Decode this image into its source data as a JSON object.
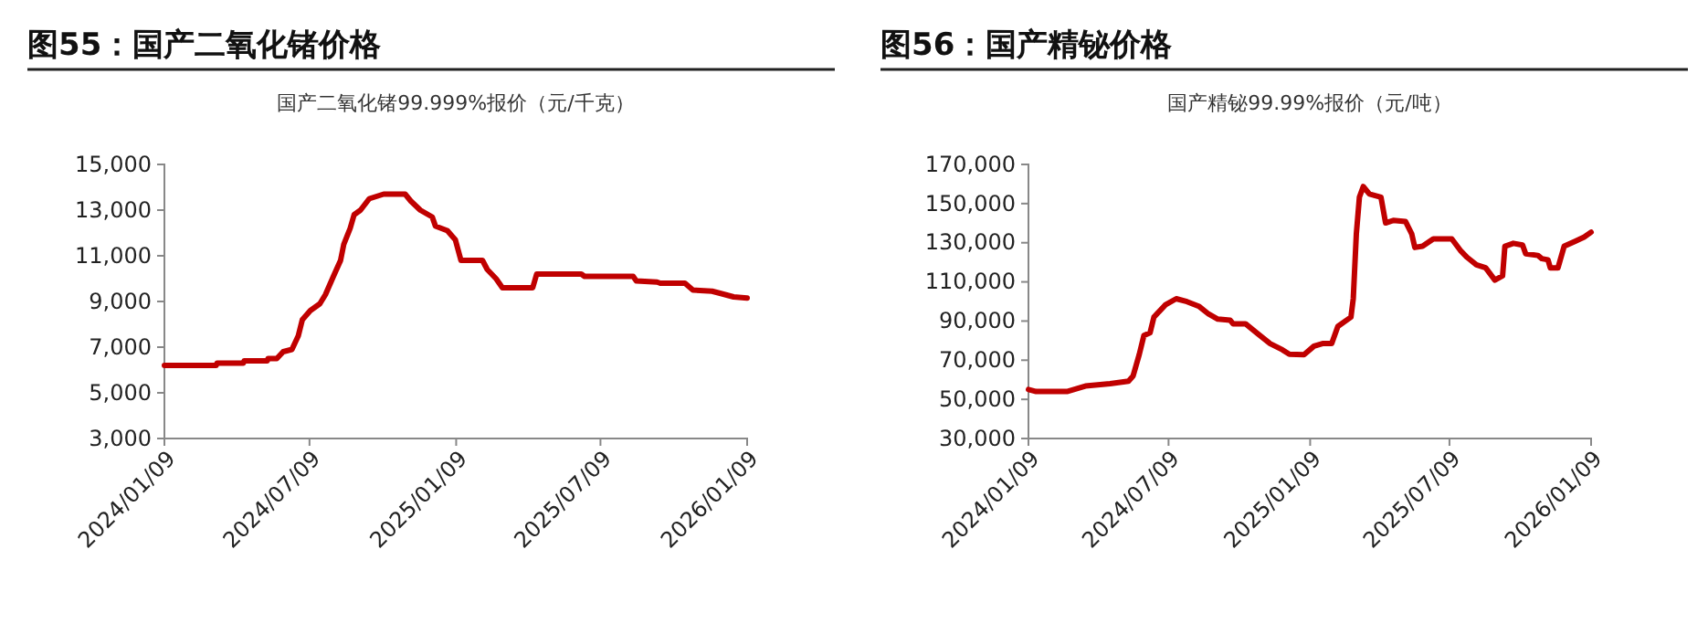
{
  "chart_data": [
    {
      "type": "line",
      "title": "图55：国产二氧化锗价格",
      "subtitle": "国产二氧化锗99.999%报价（元/千克）",
      "x": [
        "2024-01-09",
        "2024-03-14",
        "2024-03-15",
        "2024-04-17",
        "2024-04-18",
        "2024-05-17",
        "2024-05-18",
        "2024-05-29",
        "2024-06-06",
        "2024-06-17",
        "2024-06-25",
        "2024-06-30",
        "2024-07-10",
        "2024-07-22",
        "2024-07-29",
        "2024-08-08",
        "2024-08-17",
        "2024-08-21",
        "2024-08-29",
        "2024-09-03",
        "2024-09-11",
        "2024-09-22",
        "2024-10-10",
        "2024-11-06",
        "2024-11-13",
        "2024-11-25",
        "2024-12-10",
        "2024-12-14",
        "2024-12-29",
        "2025-01-08",
        "2025-01-15",
        "2025-02-11",
        "2025-02-17",
        "2025-02-28",
        "2025-03-08",
        "2025-04-15",
        "2025-04-20",
        "2025-06-15",
        "2025-06-19",
        "2025-08-19",
        "2025-08-23",
        "2025-09-18",
        "2025-09-22",
        "2025-10-23",
        "2025-11-02",
        "2025-11-26",
        "2025-12-07",
        "2025-12-23",
        "2026-01-09"
      ],
      "series": [
        {
          "color": "#c00000",
          "values": [
            6200,
            6200,
            6300,
            6300,
            6400,
            6400,
            6500,
            6500,
            6800,
            6900,
            7500,
            8200,
            8600,
            8900,
            9300,
            10100,
            10800,
            11500,
            12200,
            12800,
            13000,
            13500,
            13700,
            13700,
            13400,
            13000,
            12700,
            12300,
            12100,
            11700,
            10800,
            10800,
            10400,
            10000,
            9600,
            9600,
            10200,
            10200,
            10100,
            10100,
            9900,
            9850,
            9800,
            9800,
            9500,
            9450,
            9350,
            9200,
            9150
          ]
        }
      ],
      "xlim": [
        "2024-01-09",
        "2026-01-09"
      ],
      "xticks": [
        {
          "value": "2024-01-09",
          "label": "2024/01/09"
        },
        {
          "value": "2024-07-09",
          "label": "2024/07/09"
        },
        {
          "value": "2025-01-09",
          "label": "2025/01/09"
        },
        {
          "value": "2025-07-09",
          "label": "2025/07/09"
        },
        {
          "value": "2026-01-09",
          "label": "2026/01/09"
        }
      ],
      "ylim": [
        3000,
        15000
      ],
      "yticks": [
        {
          "value": 3000,
          "label": "3,000"
        },
        {
          "value": 5000,
          "label": "5,000"
        },
        {
          "value": 7000,
          "label": "7,000"
        },
        {
          "value": 9000,
          "label": "9,000"
        },
        {
          "value": 11000,
          "label": "11,000"
        },
        {
          "value": 13000,
          "label": "13,000"
        },
        {
          "value": 15000,
          "label": "15,000"
        }
      ],
      "grid": false
    },
    {
      "type": "line",
      "title": "图56：国产精铋价格",
      "subtitle": "国产精铋99.99%报价（元/吨）",
      "x": [
        "2024-01-09",
        "2024-01-19",
        "2024-02-28",
        "2024-03-23",
        "2024-04-24",
        "2024-05-18",
        "2024-05-24",
        "2024-06-01",
        "2024-06-07",
        "2024-06-15",
        "2024-06-20",
        "2024-07-05",
        "2024-07-19",
        "2024-08-02",
        "2024-08-18",
        "2024-08-30",
        "2024-09-11",
        "2024-09-27",
        "2024-10-01",
        "2024-10-17",
        "2024-11-02",
        "2024-11-18",
        "2024-12-04",
        "2024-12-13",
        "2025-01-01",
        "2025-01-14",
        "2025-01-25",
        "2025-02-06",
        "2025-02-14",
        "2025-03-03",
        "2025-03-06",
        "2025-03-10",
        "2025-03-14",
        "2025-03-19",
        "2025-03-27",
        "2025-04-11",
        "2025-04-17",
        "2025-04-27",
        "2025-05-13",
        "2025-05-21",
        "2025-05-25",
        "2025-06-04",
        "2025-06-18",
        "2025-07-12",
        "2025-07-24",
        "2025-08-01",
        "2025-08-13",
        "2025-08-25",
        "2025-09-06",
        "2025-09-16",
        "2025-09-19",
        "2025-09-30",
        "2025-10-12",
        "2025-10-16",
        "2025-11-01",
        "2025-11-06",
        "2025-11-14",
        "2025-11-17",
        "2025-11-27",
        "2025-12-05",
        "2025-12-19",
        "2025-12-31",
        "2026-01-09"
      ],
      "series": [
        {
          "color": "#c00000",
          "values": [
            55000,
            54000,
            54000,
            56800,
            58000,
            59300,
            62000,
            73000,
            82600,
            84000,
            92000,
            98300,
            101400,
            99900,
            97400,
            93600,
            91000,
            90400,
            88600,
            88600,
            83500,
            78500,
            75300,
            73000,
            72800,
            77200,
            78500,
            78500,
            87300,
            92000,
            101400,
            134500,
            153300,
            158700,
            154900,
            153300,
            140100,
            141400,
            140800,
            134500,
            127600,
            128200,
            132000,
            132000,
            125700,
            122500,
            118700,
            117200,
            110900,
            113100,
            128200,
            129700,
            128800,
            124400,
            123500,
            121900,
            121300,
            117200,
            117200,
            128200,
            130700,
            132900,
            135400
          ]
        }
      ],
      "xlim": [
        "2024-01-09",
        "2026-01-09"
      ],
      "xticks": [
        {
          "value": "2024-01-09",
          "label": "2024/01/09"
        },
        {
          "value": "2024-07-09",
          "label": "2024/07/09"
        },
        {
          "value": "2025-01-09",
          "label": "2025/01/09"
        },
        {
          "value": "2025-07-09",
          "label": "2025/07/09"
        },
        {
          "value": "2026-01-09",
          "label": "2026/01/09"
        }
      ],
      "ylim": [
        30000,
        170000
      ],
      "yticks": [
        {
          "value": 30000,
          "label": "30,000"
        },
        {
          "value": 50000,
          "label": "50,000"
        },
        {
          "value": 70000,
          "label": "70,000"
        },
        {
          "value": 90000,
          "label": "90,000"
        },
        {
          "value": 110000,
          "label": "110,000"
        },
        {
          "value": 130000,
          "label": "130,000"
        },
        {
          "value": 150000,
          "label": "150,000"
        },
        {
          "value": 170000,
          "label": "170,000"
        }
      ],
      "grid": false
    }
  ]
}
